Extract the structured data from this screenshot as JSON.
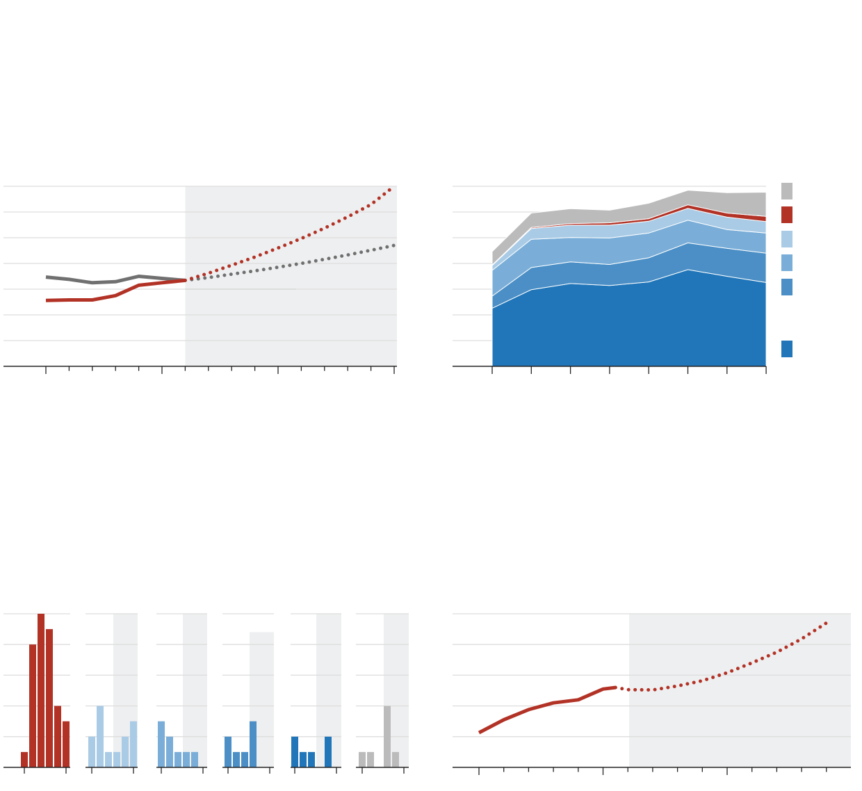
{
  "colors": {
    "red": "#b23226",
    "gray_line": "#707070",
    "gray_area": "#bbbbbb",
    "blue_dark": "#2176b9",
    "blue_mid": "#4b8fc6",
    "blue_light": "#7aaed8",
    "blue_pale": "#a9cbe6",
    "projection_bg": "#eeeff0",
    "grid": "#dddddd",
    "axis": "#222222"
  },
  "chart_data": [
    {
      "type": "line",
      "grid": true,
      "ylim": [
        0,
        7
      ],
      "xlim": [
        0,
        17
      ],
      "projection_start": 8,
      "series": [
        {
          "color_key": "gray_line",
          "style": "solid",
          "x": [
            2,
            3,
            4,
            5,
            6,
            7,
            8
          ],
          "values": [
            3.47,
            3.38,
            3.25,
            3.29,
            3.5,
            3.42,
            3.34
          ]
        },
        {
          "color_key": "red",
          "style": "solid",
          "x": [
            2,
            3,
            4,
            5,
            6,
            7,
            8
          ],
          "values": [
            2.56,
            2.58,
            2.58,
            2.75,
            3.15,
            3.25,
            3.34
          ]
        },
        {
          "color_key": "gray_line",
          "style": "dotted",
          "x": [
            8,
            9,
            10,
            11,
            12,
            13,
            14,
            15,
            16,
            17
          ],
          "values": [
            3.34,
            3.45,
            3.58,
            3.71,
            3.85,
            4.0,
            4.16,
            4.33,
            4.51,
            4.7
          ]
        },
        {
          "color_key": "red",
          "style": "dotted",
          "x": [
            8,
            9,
            10,
            11,
            12,
            13,
            14,
            15,
            16,
            17
          ],
          "values": [
            3.34,
            3.62,
            3.93,
            4.25,
            4.6,
            4.97,
            5.37,
            5.81,
            6.29,
            7.0
          ]
        }
      ]
    },
    {
      "type": "area",
      "grid": true,
      "ylim": [
        0,
        7
      ],
      "x": [
        0,
        1,
        2,
        3,
        4,
        5,
        6,
        7
      ],
      "series": [
        {
          "color_key": "blue_dark",
          "values": [
            2.26,
            2.98,
            3.22,
            3.14,
            3.28,
            3.76,
            3.5,
            3.26
          ]
        },
        {
          "color_key": "blue_mid",
          "values": [
            0.47,
            0.86,
            0.84,
            0.82,
            0.94,
            1.04,
            1.09,
            1.14
          ]
        },
        {
          "color_key": "blue_light",
          "values": [
            1.0,
            1.1,
            0.95,
            1.03,
            0.96,
            0.88,
            0.73,
            0.78
          ]
        },
        {
          "color_key": "blue_pale",
          "values": [
            0.19,
            0.42,
            0.48,
            0.5,
            0.46,
            0.46,
            0.48,
            0.45
          ]
        },
        {
          "color_key": "red",
          "values": [
            0.02,
            0.04,
            0.06,
            0.09,
            0.1,
            0.14,
            0.16,
            0.2
          ]
        },
        {
          "color_key": "gray_area",
          "values": [
            0.52,
            0.56,
            0.58,
            0.49,
            0.6,
            0.57,
            0.79,
            0.94
          ]
        }
      ],
      "legend": {
        "position": "right",
        "swatches": [
          "gray_area",
          "red",
          "blue_pale",
          "blue_light",
          "blue_mid",
          "blue_dark"
        ]
      }
    },
    {
      "type": "bar",
      "grid": true,
      "ylim": [
        0,
        5
      ],
      "panels": [
        {
          "color_key": "red",
          "values": [
            0.5,
            4.0,
            5.0,
            4.5,
            2.0,
            1.5
          ],
          "shade_from": 6,
          "shade_top": 5
        },
        {
          "color_key": "blue_pale",
          "values": [
            1.0,
            2.0,
            0.5,
            0.5,
            1.0,
            1.5
          ],
          "shade_from": 3,
          "shade_top": 5
        },
        {
          "color_key": "blue_light",
          "values": [
            1.5,
            1.0,
            0.5,
            0.5,
            0.5
          ],
          "shade_from": 3,
          "shade_top": 5
        },
        {
          "color_key": "blue_mid",
          "values": [
            1.0,
            0.5,
            0.5,
            1.5
          ],
          "shade_from": 3,
          "shade_top": 4.4
        },
        {
          "color_key": "blue_dark",
          "values": [
            1.0,
            0.5,
            0.5,
            0,
            1.0
          ],
          "shade_from": 3,
          "shade_top": 5
        },
        {
          "color_key": "gray_area",
          "values": [
            0.5,
            0.5,
            0,
            2.0,
            0.5
          ],
          "shade_from": 3,
          "shade_top": 5
        }
      ]
    },
    {
      "type": "line",
      "grid": true,
      "ylim": [
        0,
        5
      ],
      "xlim": [
        0,
        15
      ],
      "projection_start": 6,
      "series": [
        {
          "color_key": "red",
          "style": "solid",
          "x": [
            1,
            2,
            3,
            4,
            5,
            6,
            6.5
          ],
          "values": [
            1.13,
            1.55,
            1.88,
            2.1,
            2.2,
            2.55,
            2.6
          ]
        },
        {
          "color_key": "red",
          "style": "dotted",
          "x": [
            6.5,
            7,
            8,
            9,
            10,
            11,
            12,
            13,
            14,
            15
          ],
          "values": [
            2.6,
            2.53,
            2.52,
            2.65,
            2.82,
            3.08,
            3.4,
            3.75,
            4.18,
            4.7
          ]
        }
      ]
    }
  ]
}
